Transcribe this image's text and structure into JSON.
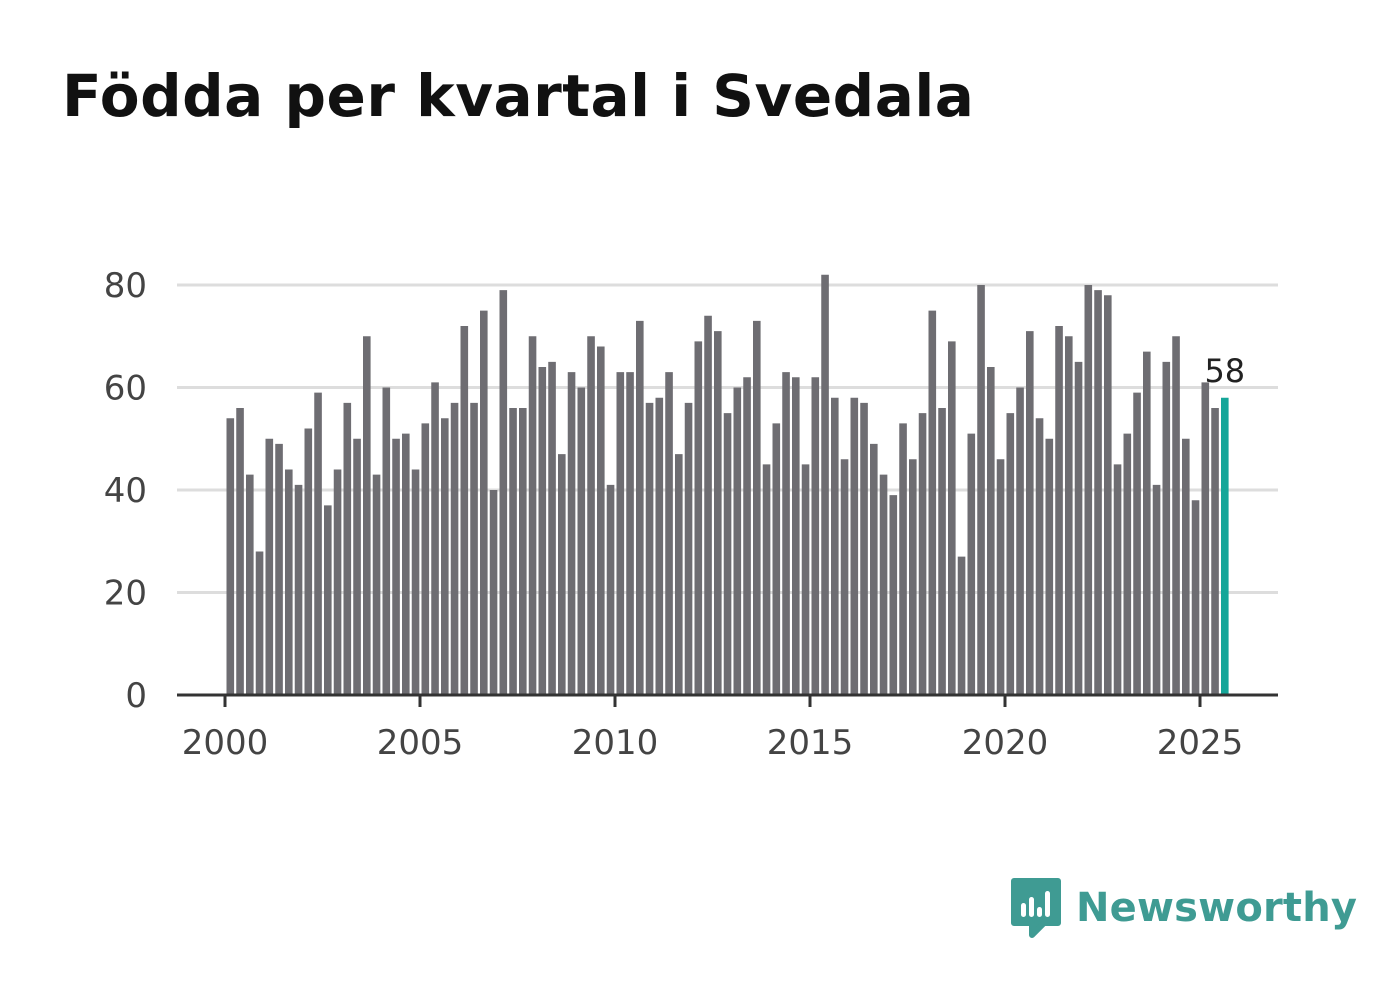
{
  "title": "Födda per kvartal i Svedala",
  "brand": {
    "name": "Newsworthy",
    "icon": "newsworthy-logo-icon",
    "color": "#3f9b93"
  },
  "colors": {
    "bar": "#6e6d72",
    "highlight": "#15a699",
    "grid": "#dddddd",
    "axis": "#333333",
    "label": "#444444"
  },
  "chart_data": {
    "type": "bar",
    "title": "Födda per kvartal i Svedala",
    "xlabel": "",
    "ylabel": "",
    "ylim": [
      0,
      80
    ],
    "yticks": [
      "0",
      "20",
      "40",
      "60",
      "80"
    ],
    "xticks": [
      "2000",
      "2005",
      "2010",
      "2015",
      "2020",
      "2025"
    ],
    "grid": true,
    "first_period": "2000 Q1",
    "last_period": "2025 Q3",
    "annotation": "58",
    "values": [
      54,
      56,
      43,
      28,
      50,
      49,
      44,
      41,
      52,
      59,
      37,
      44,
      57,
      50,
      70,
      43,
      60,
      50,
      51,
      44,
      53,
      61,
      54,
      57,
      72,
      57,
      75,
      40,
      79,
      56,
      56,
      70,
      64,
      65,
      47,
      63,
      60,
      70,
      68,
      41,
      63,
      63,
      73,
      57,
      58,
      63,
      47,
      57,
      69,
      74,
      71,
      55,
      60,
      62,
      73,
      45,
      53,
      63,
      62,
      45,
      62,
      82,
      58,
      46,
      58,
      57,
      49,
      43,
      39,
      53,
      46,
      55,
      75,
      56,
      69,
      27,
      51,
      80,
      64,
      46,
      55,
      60,
      71,
      54,
      50,
      72,
      70,
      65,
      80,
      79,
      78,
      45,
      51,
      59,
      67,
      41,
      65,
      70,
      50,
      38,
      61,
      56,
      58
    ]
  }
}
